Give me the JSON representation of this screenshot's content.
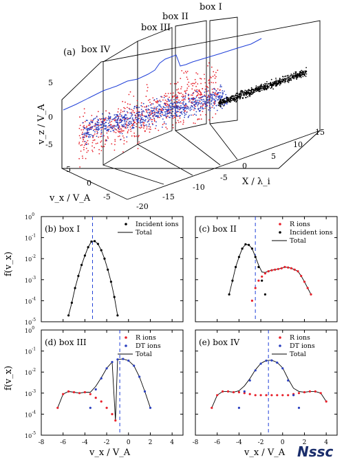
{
  "panel_a": {
    "label": "(a)",
    "box_labels": [
      "box IV",
      "box III",
      "box II",
      "box I"
    ],
    "zlabel": "v_z / V_A",
    "xlabel": "X / λ_i",
    "ylabel": "v_x / V_A",
    "z_ticks": [
      "5",
      "0",
      "-5"
    ],
    "x_ticks": [
      "-20",
      "-15",
      "-10",
      "-5",
      "0",
      "5",
      "10",
      "15"
    ],
    "y_ticks": [
      "5",
      "0",
      "-5"
    ],
    "colors": {
      "r_ions": "#e8202a",
      "dt_ions": "#2a3fbf",
      "incident": "#000000",
      "curve": "#1f3fd8"
    }
  },
  "chart_data": [
    {
      "type": "scatter",
      "panel": "(b) box I",
      "ylabel": "f(v_x)",
      "xlim": [
        -8,
        5
      ],
      "ylog": true,
      "ylim": [
        1e-05,
        1
      ],
      "ytick_labels": [
        "10^0",
        "10^-1",
        "10^-2",
        "10^-3",
        "10^-4",
        "10^-5"
      ],
      "vline_x": -3.3,
      "legend": [
        "Incident ions",
        "Total"
      ],
      "series": [
        {
          "name": "Incident ions",
          "color": "#000000",
          "x": [
            -5.5,
            -5.2,
            -4.9,
            -4.6,
            -4.3,
            -4.0,
            -3.7,
            -3.4,
            -3.1,
            -2.8,
            -2.5,
            -2.2,
            -1.9,
            -1.6,
            -1.3,
            -1.0
          ],
          "y": [
            2e-05,
            8e-05,
            0.0004,
            0.0015,
            0.005,
            0.014,
            0.035,
            0.065,
            0.068,
            0.05,
            0.025,
            0.01,
            0.003,
            0.0008,
            0.00015,
            2e-05
          ]
        }
      ]
    },
    {
      "type": "scatter",
      "panel": "(c) box II",
      "xlim": [
        -8,
        5
      ],
      "ylog": true,
      "ylim": [
        1e-05,
        1
      ],
      "vline_x": -2.5,
      "legend": [
        "R ions",
        "Incident ions",
        "Total"
      ],
      "series": [
        {
          "name": "R ions",
          "color": "#e8202a",
          "x": [
            -2.8,
            -2.5,
            -2.2,
            -1.9,
            -1.6,
            -1.3,
            -1.0,
            -0.7,
            -0.4,
            -0.1,
            0.2,
            0.5,
            0.8,
            1.1,
            1.4,
            1.7,
            2.0,
            2.3,
            2.6
          ],
          "y": [
            0.0001,
            0.0004,
            0.0009,
            0.0014,
            0.002,
            0.0025,
            0.0028,
            0.003,
            0.0032,
            0.0035,
            0.004,
            0.0038,
            0.0035,
            0.003,
            0.0025,
            0.0015,
            0.0008,
            0.0004,
            0.0002
          ]
        },
        {
          "name": "Incident ions",
          "color": "#000000",
          "x": [
            -4.9,
            -4.6,
            -4.3,
            -4.0,
            -3.7,
            -3.4,
            -3.1,
            -2.8,
            -2.5,
            -2.2,
            -1.9,
            -1.6
          ],
          "y": [
            0.0002,
            0.0009,
            0.004,
            0.012,
            0.03,
            0.048,
            0.045,
            0.03,
            0.012,
            0.004,
            0.0009,
            0.0002
          ]
        }
      ]
    },
    {
      "type": "scatter",
      "panel": "(d) box III",
      "ylabel": "f(v_x)",
      "xlabel": "v_x / V_A",
      "xlim": [
        -8,
        5
      ],
      "xticks": [
        -8,
        -6,
        -4,
        -2,
        0,
        2,
        4
      ],
      "ylog": true,
      "ylim": [
        1e-05,
        1
      ],
      "vline_x": -0.8,
      "legend": [
        "R ions",
        "DT ions",
        "Total"
      ],
      "series": [
        {
          "name": "R ions",
          "color": "#e8202a",
          "x": [
            -6.5,
            -6.0,
            -5.5,
            -5.0,
            -4.5,
            -4.0,
            -3.5,
            -3.0,
            -2.5,
            -2.0,
            -1.5,
            -1.2
          ],
          "y": [
            0.0002,
            0.0009,
            0.0012,
            0.0011,
            0.001,
            0.0011,
            0.0009,
            0.0006,
            0.0004,
            0.0002,
            0.0001,
            5e-05
          ]
        },
        {
          "name": "DT ions",
          "color": "#2a3fbf",
          "x": [
            -3.5,
            -3.0,
            -2.5,
            -2.0,
            -1.5,
            -1.0,
            -0.5,
            0.0,
            0.5,
            1.0,
            1.5,
            2.0
          ],
          "y": [
            0.0002,
            0.0015,
            0.005,
            0.015,
            0.03,
            0.04,
            0.042,
            0.035,
            0.02,
            0.006,
            0.0012,
            0.0002
          ]
        }
      ]
    },
    {
      "type": "scatter",
      "panel": "(e) box IV",
      "xlabel": "v_x / V_A",
      "xlim": [
        -8,
        5
      ],
      "xticks": [
        -8,
        -6,
        -4,
        -2,
        0,
        2,
        4
      ],
      "ylog": true,
      "ylim": [
        1e-05,
        1
      ],
      "vline_x": -1.3,
      "legend": [
        "R ions",
        "DT ions",
        "Total"
      ],
      "series": [
        {
          "name": "R ions",
          "color": "#e8202a",
          "x": [
            -6.5,
            -6.0,
            -5.5,
            -5.0,
            -4.5,
            -4.0,
            -3.5,
            -3.0,
            -2.5,
            -2.0,
            -1.5,
            -1.0,
            -0.5,
            0.0,
            0.5,
            1.0,
            1.5,
            2.0,
            2.5,
            3.0,
            3.5,
            4.0
          ],
          "y": [
            0.0002,
            0.0008,
            0.0012,
            0.0012,
            0.0011,
            0.0011,
            0.001,
            0.0009,
            0.0008,
            0.0008,
            0.0008,
            0.0008,
            0.0008,
            0.0008,
            0.0008,
            0.0009,
            0.001,
            0.0011,
            0.0012,
            0.0012,
            0.001,
            0.0004
          ]
        },
        {
          "name": "DT ions",
          "color": "#2a3fbf",
          "x": [
            -4.0,
            -3.5,
            -3.0,
            -2.5,
            -2.0,
            -1.5,
            -1.0,
            -0.5,
            0.0,
            0.5,
            1.0,
            1.5
          ],
          "y": [
            0.0002,
            0.0012,
            0.004,
            0.012,
            0.025,
            0.035,
            0.036,
            0.028,
            0.015,
            0.004,
            0.0008,
            0.0002
          ]
        }
      ]
    }
  ],
  "watermark": "Nssc"
}
